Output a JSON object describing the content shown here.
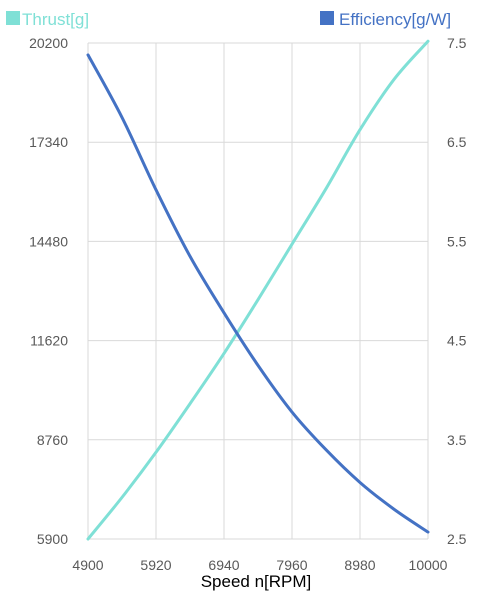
{
  "chart_data": {
    "type": "line",
    "xlabel": "Speed n[RPM]",
    "x_ticks": [
      "4900",
      "5920",
      "6940",
      "7960",
      "8980",
      "10000"
    ],
    "xlim": [
      4900,
      10000
    ],
    "y_left_ticks": [
      "5900",
      "8760",
      "11620",
      "14480",
      "17340",
      "20200"
    ],
    "y_left_lim": [
      5900,
      20200
    ],
    "y_right_ticks": [
      "2.5",
      "3.5",
      "4.5",
      "5.5",
      "6.5",
      "7.5"
    ],
    "y_right_lim": [
      2.5,
      7.5
    ],
    "grid": true,
    "legend_position": "top",
    "series": [
      {
        "name": "Thrust[g]",
        "axis": "left",
        "color": "#7fe0d6",
        "x": [
          4900,
          5410,
          5920,
          6430,
          6940,
          7450,
          7960,
          8470,
          8980,
          9490,
          10000
        ],
        "y": [
          5900,
          7100,
          8400,
          9800,
          11250,
          12800,
          14400,
          16000,
          17700,
          19150,
          20250
        ]
      },
      {
        "name": "Efficiency[g/W]",
        "axis": "right",
        "color": "#4472c4",
        "x": [
          4900,
          5410,
          5920,
          6430,
          6940,
          7450,
          7960,
          8470,
          8980,
          9490,
          10000
        ],
        "y": [
          7.38,
          6.75,
          6.02,
          5.35,
          4.78,
          4.25,
          3.78,
          3.4,
          3.07,
          2.8,
          2.57
        ]
      }
    ]
  }
}
